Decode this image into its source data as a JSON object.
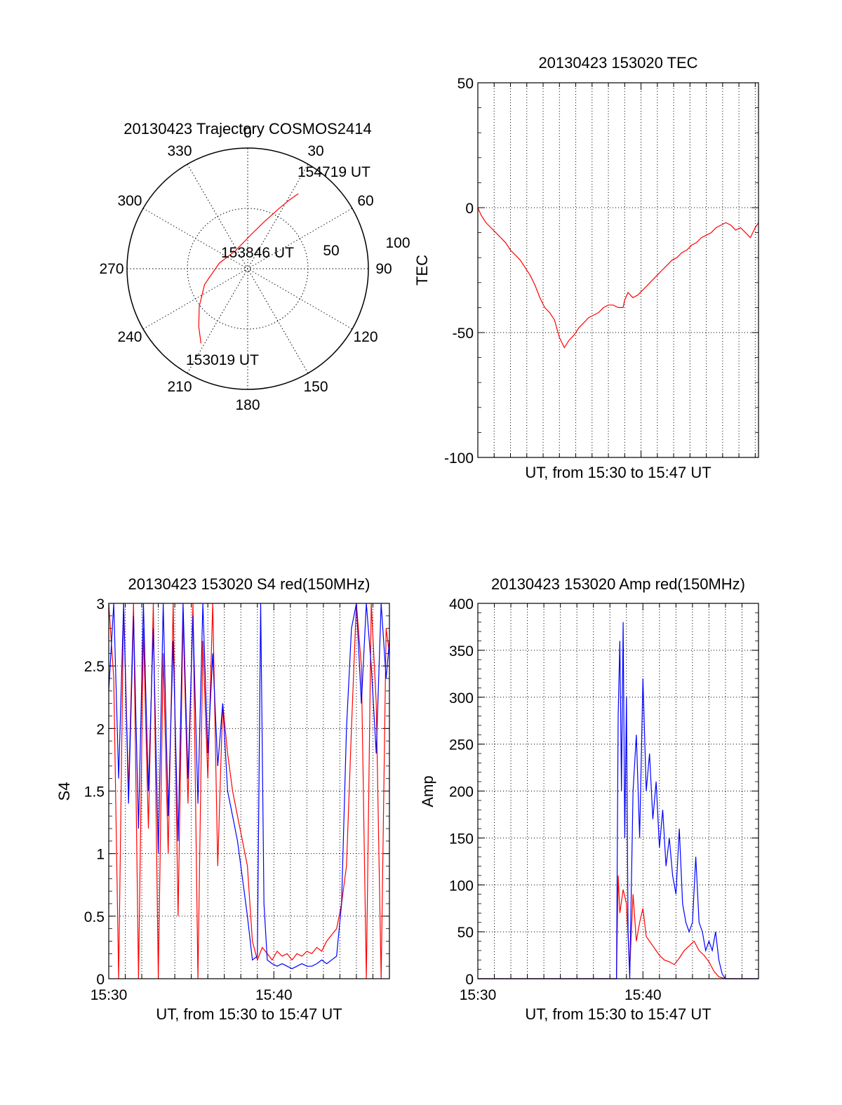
{
  "colors": {
    "primary": "#ff0000",
    "secondary": "#0000ff",
    "axis": "#000000",
    "grid": "#000000"
  },
  "chart_data": [
    {
      "type": "polar",
      "title": "20130423 Trajectory COSMOS2414",
      "azimuth_labels": [
        "0",
        "30",
        "60",
        "90",
        "120",
        "150",
        "180",
        "210",
        "240",
        "270",
        "300",
        "330"
      ],
      "radial_labels": [
        "50",
        "100"
      ],
      "grid": true,
      "annotations": [
        "154719 UT",
        "153846 UT",
        "153019 UT"
      ],
      "series": [
        {
          "color": "#ff0000",
          "points": [
            [
              212,
              73
            ],
            [
              220,
              63
            ],
            [
              232,
              51
            ],
            [
              250,
              38
            ],
            [
              281,
              24
            ],
            [
              326,
              18
            ],
            [
              5,
              28
            ],
            [
              20,
              42
            ],
            [
              27,
              55
            ],
            [
              31,
              66
            ],
            [
              34,
              75
            ]
          ]
        }
      ]
    },
    {
      "type": "line",
      "title": "20130423 153020 TEC",
      "xlabel": "UT, from 15:30 to 15:47 UT",
      "ylabel": "TEC",
      "xlim": [
        0,
        17.2
      ],
      "ylim": [
        -100,
        50
      ],
      "yticks": [
        "50",
        "0",
        "-50",
        "-100"
      ],
      "grid": true,
      "series": [
        {
          "color": "#ff0000",
          "x": [
            0,
            0.2,
            0.5,
            0.8,
            1.1,
            1.4,
            1.7,
            2.0,
            2.3,
            2.6,
            2.9,
            3.2,
            3.5,
            3.8,
            4.1,
            4.4,
            4.7,
            5.0,
            5.3,
            5.6,
            5.9,
            6.2,
            6.5,
            6.8,
            7.1,
            7.4,
            7.7,
            8.0,
            8.3,
            8.6,
            8.9,
            9.0,
            9.2,
            9.5,
            9.8,
            10.1,
            10.4,
            10.7,
            11.0,
            11.3,
            11.6,
            11.9,
            12.2,
            12.5,
            12.8,
            13.1,
            13.4,
            13.7,
            14.0,
            14.3,
            14.6,
            14.9,
            15.2,
            15.5,
            15.8,
            16.1,
            16.4,
            16.7,
            17.0,
            17.2
          ],
          "y": [
            0,
            -3,
            -6,
            -8,
            -10,
            -12,
            -14,
            -17,
            -19,
            -21,
            -24,
            -27,
            -31,
            -36,
            -40,
            -42,
            -45,
            -52,
            -56,
            -53,
            -51,
            -48,
            -46,
            -44,
            -43,
            -42,
            -40,
            -39,
            -39,
            -40,
            -40,
            -37,
            -34,
            -36,
            -35,
            -33,
            -31,
            -29,
            -27,
            -25,
            -23,
            -21,
            -20,
            -18,
            -17,
            -15,
            -14,
            -12,
            -11,
            -10,
            -8,
            -7,
            -6,
            -7,
            -9,
            -8,
            -10,
            -12,
            -8,
            -6
          ]
        }
      ]
    },
    {
      "type": "line",
      "title": "20130423 153020 S4 red(150MHz)",
      "xlabel": "UT, from 15:30 to 15:47 UT",
      "ylabel": "S4",
      "xlim": [
        0,
        17
      ],
      "ylim": [
        0,
        3
      ],
      "xticks": [
        {
          "value": 0,
          "label": "15:30"
        },
        {
          "value": 10,
          "label": "15:40"
        }
      ],
      "yticks": [
        "0",
        "0.5",
        "1",
        "1.5",
        "2",
        "2.5",
        "3"
      ],
      "grid": true,
      "series": [
        {
          "color": "#ff0000",
          "x": [
            0,
            0.3,
            0.6,
            0.9,
            1.2,
            1.5,
            1.8,
            2.1,
            2.4,
            2.7,
            3.0,
            3.3,
            3.6,
            3.9,
            4.2,
            4.5,
            4.8,
            5.1,
            5.4,
            5.7,
            6.0,
            6.3,
            6.6,
            6.9,
            7.2,
            7.5,
            7.8,
            8.1,
            8.4,
            8.7,
            9.0,
            9.3,
            9.6,
            9.9,
            10.2,
            10.5,
            10.8,
            11.1,
            11.4,
            11.7,
            12.0,
            12.3,
            12.6,
            12.9,
            13.2,
            13.5,
            13.8,
            14.1,
            14.4,
            14.7,
            15.0,
            15.3,
            15.6,
            15.9,
            16.2,
            16.5,
            16.8,
            17.0
          ],
          "y": [
            3,
            2.4,
            0,
            3,
            1.5,
            3,
            0,
            2.8,
            1.2,
            3,
            0,
            2.6,
            1.0,
            3,
            0.5,
            2.9,
            1.4,
            3,
            0,
            2.7,
            1.6,
            3,
            0.9,
            2.2,
            1.8,
            1.5,
            1.3,
            1.1,
            0.9,
            0.3,
            0.15,
            0.25,
            0.2,
            0.15,
            0.22,
            0.18,
            0.2,
            0.15,
            0.2,
            0.18,
            0.22,
            0.2,
            0.25,
            0.22,
            0.3,
            0.35,
            0.4,
            0.6,
            0.9,
            2.0,
            3,
            2.5,
            0,
            3,
            2.2,
            0,
            2.8,
            2.6
          ]
        },
        {
          "color": "#0000ff",
          "x": [
            0,
            0.3,
            0.6,
            0.9,
            1.2,
            1.5,
            1.8,
            2.1,
            2.4,
            2.7,
            3.0,
            3.3,
            3.6,
            3.9,
            4.2,
            4.5,
            4.8,
            5.1,
            5.4,
            5.7,
            6.0,
            6.3,
            6.6,
            6.9,
            7.2,
            7.5,
            7.8,
            8.1,
            8.4,
            8.7,
            9.0,
            9.2,
            9.4,
            9.6,
            9.9,
            10.2,
            10.5,
            10.8,
            11.1,
            11.4,
            11.7,
            12.0,
            12.3,
            12.6,
            12.9,
            13.2,
            13.5,
            13.8,
            14.1,
            14.4,
            14.7,
            15.0,
            15.3,
            15.6,
            15.9,
            16.2,
            16.5,
            16.8,
            17.0
          ],
          "y": [
            2.3,
            3,
            1.6,
            3,
            1.4,
            2.9,
            1.2,
            3,
            1.5,
            2.8,
            1.0,
            3,
            1.3,
            2.7,
            1.1,
            3,
            1.6,
            2.9,
            1.4,
            3,
            1.8,
            2.6,
            1.7,
            2.2,
            1.5,
            1.3,
            1.1,
            0.8,
            0.5,
            0.15,
            0.18,
            3,
            0.6,
            0.15,
            0.12,
            0.1,
            0.12,
            0.1,
            0.08,
            0.1,
            0.12,
            0.1,
            0.1,
            0.12,
            0.15,
            0.12,
            0.15,
            0.18,
            0.6,
            2.0,
            2.8,
            3,
            2.2,
            3,
            2.5,
            1.8,
            3,
            2.4,
            2.7
          ]
        }
      ]
    },
    {
      "type": "line",
      "title": "20130423 153020 Amp red(150MHz)",
      "xlabel": "UT, from 15:30 to 15:47 UT",
      "ylabel": "Amp",
      "xlim": [
        0,
        17
      ],
      "ylim": [
        0,
        400
      ],
      "xticks": [
        {
          "value": 0,
          "label": "15:30"
        },
        {
          "value": 10,
          "label": "15:40"
        }
      ],
      "yticks": [
        "0",
        "50",
        "100",
        "150",
        "200",
        "250",
        "300",
        "350",
        "400"
      ],
      "grid": true,
      "series": [
        {
          "color": "#ff0000",
          "x": [
            0,
            8.0,
            8.4,
            8.5,
            8.6,
            8.8,
            9.0,
            9.2,
            9.4,
            9.6,
            9.8,
            10.0,
            10.2,
            10.4,
            10.6,
            10.8,
            11.0,
            11.3,
            11.6,
            11.9,
            12.2,
            12.5,
            12.8,
            13.1,
            13.4,
            13.7,
            14.0,
            14.3,
            14.6,
            15.0,
            15.5,
            16.0,
            17.0
          ],
          "y": [
            0,
            0,
            0,
            110,
            70,
            95,
            80,
            10,
            90,
            40,
            60,
            75,
            45,
            40,
            35,
            30,
            25,
            20,
            18,
            15,
            22,
            30,
            35,
            40,
            30,
            25,
            18,
            8,
            2,
            0,
            0,
            0,
            0
          ]
        },
        {
          "color": "#0000ff",
          "x": [
            0,
            8.0,
            8.4,
            8.5,
            8.6,
            8.7,
            8.8,
            8.9,
            9.0,
            9.1,
            9.2,
            9.4,
            9.6,
            9.8,
            10.0,
            10.2,
            10.4,
            10.6,
            10.8,
            11.0,
            11.2,
            11.4,
            11.6,
            11.8,
            12.0,
            12.2,
            12.4,
            12.6,
            12.8,
            13.0,
            13.2,
            13.4,
            13.6,
            13.8,
            14.0,
            14.2,
            14.4,
            14.6,
            14.8,
            15.0,
            16.0,
            17.0
          ],
          "y": [
            0,
            0,
            0,
            280,
            360,
            200,
            380,
            150,
            300,
            50,
            0,
            200,
            260,
            150,
            320,
            200,
            240,
            170,
            210,
            140,
            180,
            120,
            150,
            110,
            90,
            160,
            80,
            60,
            50,
            60,
            130,
            60,
            50,
            30,
            40,
            30,
            50,
            20,
            5,
            0,
            0,
            0
          ]
        }
      ]
    }
  ]
}
